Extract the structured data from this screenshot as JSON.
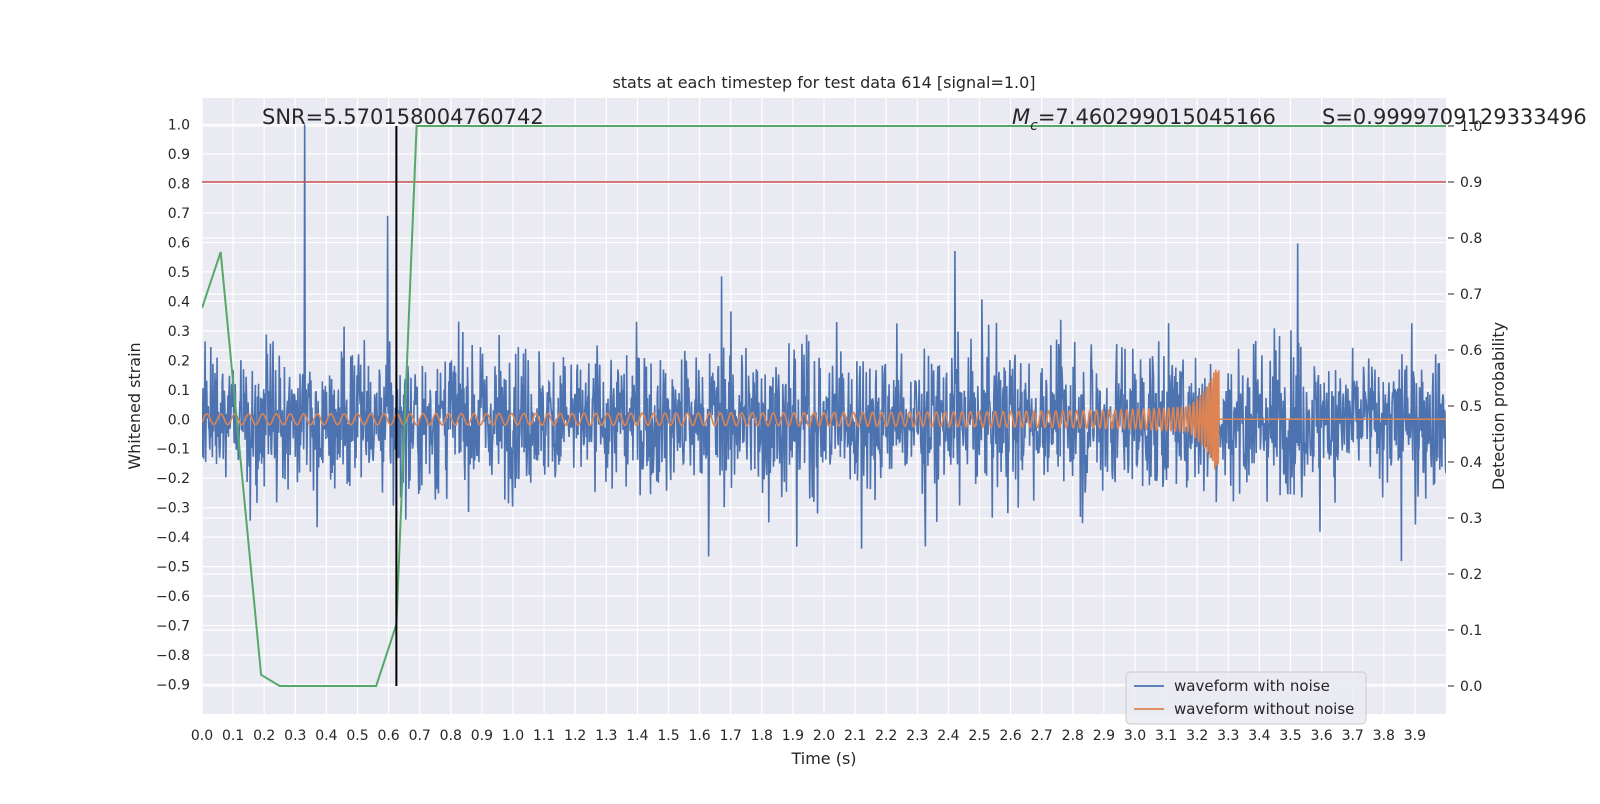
{
  "chart_data": {
    "type": "line",
    "title": "stats at each timestep for test data 614 [signal=1.0]",
    "xlabel": "Time (s)",
    "ylabel": "Whitened strain",
    "ylabel_right": "Detection probability",
    "xlim": [
      0.0,
      4.0
    ],
    "ylim": [
      -1.0,
      1.09
    ],
    "ylim_right": [
      -0.05,
      1.05
    ],
    "x_ticks": [
      "0.0",
      "0.1",
      "0.2",
      "0.3",
      "0.4",
      "0.5",
      "0.6",
      "0.7",
      "0.8",
      "0.9",
      "1.0",
      "1.1",
      "1.2",
      "1.3",
      "1.4",
      "1.5",
      "1.6",
      "1.7",
      "1.8",
      "1.9",
      "2.0",
      "2.1",
      "2.2",
      "2.3",
      "2.4",
      "2.5",
      "2.6",
      "2.7",
      "2.8",
      "2.9",
      "3.0",
      "3.1",
      "3.2",
      "3.3",
      "3.4",
      "3.5",
      "3.6",
      "3.7",
      "3.8",
      "3.9"
    ],
    "y_ticks": [
      "1.0",
      "0.9",
      "0.8",
      "0.7",
      "0.6",
      "0.5",
      "0.4",
      "0.3",
      "0.2",
      "0.1",
      "0.0",
      "−0.1",
      "−0.2",
      "−0.3",
      "−0.4",
      "−0.5",
      "−0.6",
      "−0.7",
      "−0.8",
      "−0.9"
    ],
    "y_ticks_right": [
      "1.0",
      "0.9",
      "0.8",
      "0.7",
      "0.6",
      "0.5",
      "0.4",
      "0.3",
      "0.2",
      "0.1",
      "0.0"
    ],
    "annotations": {
      "snr": "SNR=5.570158004760742",
      "mc_symbol": "M",
      "mc_sub": "c",
      "mc_value": "=7.460299015045166",
      "s": "S=0.9999709129333496"
    },
    "legend": {
      "placement": "lower-right",
      "entries": [
        "waveform with noise",
        "waveform without noise"
      ]
    },
    "threshold_right": 0.9,
    "marker_time": 0.625,
    "series": [
      {
        "name": "waveform with noise",
        "color": "#4c72b0",
        "style": "noisy strain, typical envelope about ±0.5, a spike reaching 1.0 near t=0.33"
      },
      {
        "name": "waveform without noise",
        "color": "#dd8452",
        "style": "chirp, amplitude ~0.02 growing to ~0.15, merger near t=3.27 s",
        "merger_time": 3.27
      },
      {
        "name": "Detection probability",
        "color": "#55a868",
        "axis": "right",
        "x": [
          0.0,
          0.06,
          0.19,
          0.25,
          0.45,
          0.56,
          0.625,
          0.69,
          4.0
        ],
        "values": [
          0.675,
          0.775,
          0.02,
          0.0,
          0.0,
          0.0,
          0.11,
          1.0,
          1.0
        ]
      }
    ],
    "colors": {
      "background": "#eaeaf2",
      "grid": "#ffffff",
      "threshold": "#c44e52",
      "marker": "#000000"
    }
  }
}
